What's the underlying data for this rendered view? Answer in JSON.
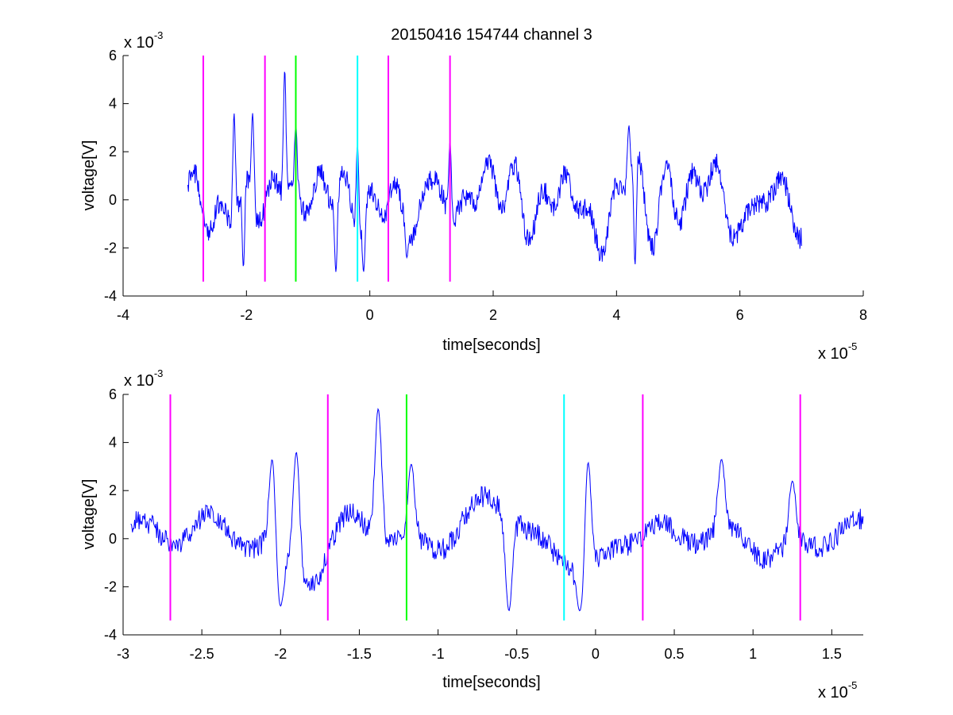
{
  "chart_data": [
    {
      "type": "line",
      "title": "20150416 154744 channel 3",
      "xlabel": "time[seconds]",
      "ylabel": "voltage[V]",
      "x_multiplier": "x 10",
      "x_exponent": "-5",
      "y_multiplier": "x 10",
      "y_exponent": "-3",
      "xlim": [
        -4,
        8
      ],
      "ylim": [
        -4,
        6
      ],
      "xticks": [
        -4,
        -2,
        0,
        2,
        4,
        6,
        8
      ],
      "xtick_labels": [
        "-4",
        "-2",
        "0",
        "2",
        "4",
        "6",
        "8"
      ],
      "yticks": [
        -4,
        -2,
        0,
        2,
        4,
        6
      ],
      "ytick_labels": [
        "-4",
        "-2",
        "0",
        "2",
        "4",
        "6"
      ],
      "grid": false,
      "signal": {
        "color": "#0000ff",
        "x_range": [
          -2.95,
          7.0
        ],
        "approx_rms": 1.0,
        "peaks": [
          {
            "x": -2.2,
            "y": 3.6
          },
          {
            "x": -2.05,
            "y": -2.8
          },
          {
            "x": -1.9,
            "y": 3.6
          },
          {
            "x": -1.38,
            "y": 5.4
          },
          {
            "x": -1.2,
            "y": 3.1
          },
          {
            "x": -0.55,
            "y": -3.0
          },
          {
            "x": -0.2,
            "y": 2.3
          },
          {
            "x": -0.1,
            "y": -3.0
          },
          {
            "x": 0.6,
            "y": -2.4
          },
          {
            "x": 1.3,
            "y": 2.4
          },
          {
            "x": 4.2,
            "y": 3.1
          },
          {
            "x": 4.3,
            "y": -2.7
          }
        ]
      },
      "markers": [
        {
          "x": -2.7,
          "color": "#ff00ff"
        },
        {
          "x": -1.7,
          "color": "#ff00ff"
        },
        {
          "x": -1.2,
          "color": "#00ff00"
        },
        {
          "x": -0.2,
          "color": "#00ffff"
        },
        {
          "x": 0.3,
          "color": "#ff00ff"
        },
        {
          "x": 1.3,
          "color": "#ff00ff"
        }
      ],
      "marker_y_range": [
        -3.4,
        6.0
      ]
    },
    {
      "type": "line",
      "title": "",
      "xlabel": "time[seconds]",
      "ylabel": "voltage[V]",
      "x_multiplier": "x 10",
      "x_exponent": "-5",
      "y_multiplier": "x 10",
      "y_exponent": "-3",
      "xlim": [
        -3.0,
        1.7
      ],
      "ylim": [
        -4,
        6
      ],
      "xticks": [
        -3,
        -2.5,
        -2,
        -1.5,
        -1,
        -0.5,
        0,
        0.5,
        1,
        1.5
      ],
      "xtick_labels": [
        "-3",
        "-2.5",
        "-2",
        "-1.5",
        "-1",
        "-0.5",
        "0",
        "0.5",
        "1",
        "1.5"
      ],
      "yticks": [
        -4,
        -2,
        0,
        2,
        4,
        6
      ],
      "ytick_labels": [
        "-4",
        "-2",
        "0",
        "2",
        "4",
        "6"
      ],
      "grid": false,
      "signal": {
        "color": "#0000ff",
        "x_range": [
          -2.95,
          1.7
        ],
        "approx_rms": 1.0,
        "peaks": [
          {
            "x": -2.05,
            "y": 3.6
          },
          {
            "x": -2.0,
            "y": -2.8
          },
          {
            "x": -1.9,
            "y": 3.6
          },
          {
            "x": -1.38,
            "y": 5.4
          },
          {
            "x": -1.17,
            "y": 3.1
          },
          {
            "x": -0.55,
            "y": -3.0
          },
          {
            "x": -0.05,
            "y": 3.5
          },
          {
            "x": -0.1,
            "y": -3.0
          },
          {
            "x": 0.8,
            "y": 3.3
          },
          {
            "x": 1.25,
            "y": 2.4
          }
        ]
      },
      "markers": [
        {
          "x": -2.7,
          "color": "#ff00ff"
        },
        {
          "x": -1.7,
          "color": "#ff00ff"
        },
        {
          "x": -1.2,
          "color": "#00ff00"
        },
        {
          "x": -0.2,
          "color": "#00ffff"
        },
        {
          "x": 0.3,
          "color": "#ff00ff"
        },
        {
          "x": 1.3,
          "color": "#ff00ff"
        }
      ],
      "marker_y_range": [
        -3.4,
        6.0
      ]
    }
  ]
}
